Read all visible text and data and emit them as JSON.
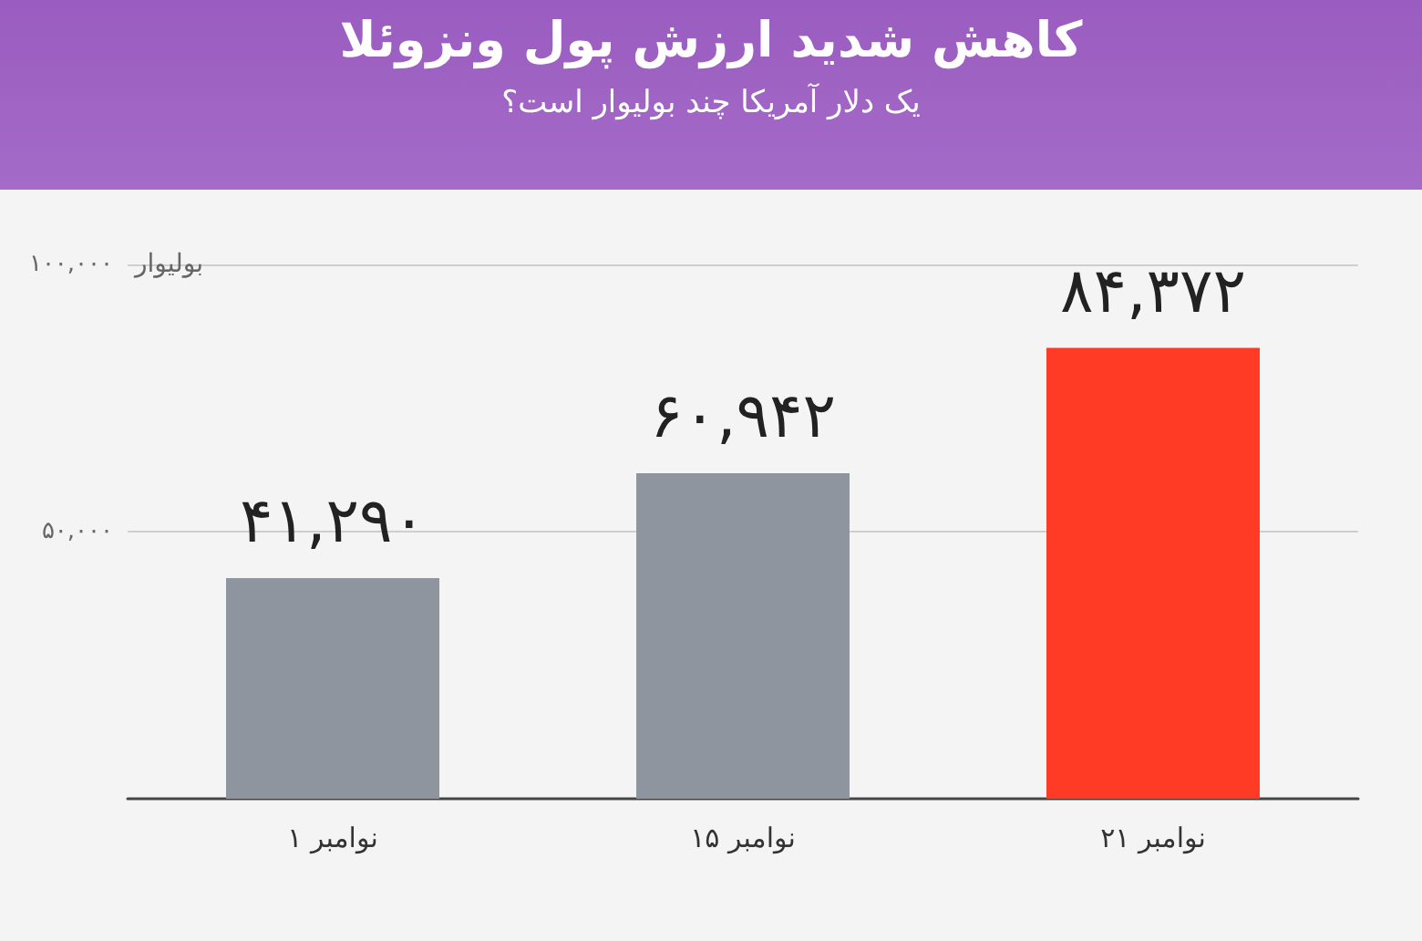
{
  "chart_data": {
    "type": "bar",
    "title": "کاهش شدید ارزش پول ونزوئلا",
    "subtitle": "یک دلار آمریکا چند بولیوار است؟",
    "ylabel": "بولیوار",
    "categories": [
      "۱ نوامبر",
      "۱۵ نوامبر",
      "۲۱ نوامبر"
    ],
    "values": [
      41290,
      60942,
      84372
    ],
    "colors": [
      "#8e959e",
      "#8e959e",
      "#ff3b25"
    ],
    "value_labels": [
      "۴۱,۲۹۰",
      "۶۰,۹۴۲",
      "۸۴,۳۷۲"
    ],
    "ylim": [
      0,
      100000
    ],
    "yticks": [
      {
        "value": 50000,
        "label": "۵۰,۰۰۰"
      },
      {
        "value": 100000,
        "label": "۱۰۰,۰۰۰"
      }
    ],
    "grid": "y"
  }
}
